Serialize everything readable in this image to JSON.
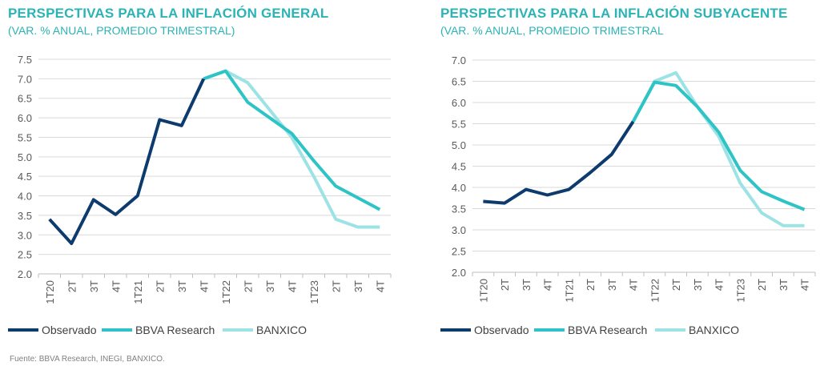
{
  "footer": {
    "source": "Fuente: BBVA Research, INEGI, BANXICO."
  },
  "chart_data": [
    {
      "type": "line",
      "title": "PERSPECTIVAS PARA LA INFLACIÓN GENERAL",
      "subtitle": "(VAR. % ANUAL, PROMEDIO TRIMESTRAL)",
      "categories": [
        "1T20",
        "2T",
        "3T",
        "4T",
        "1T21",
        "2T",
        "3T",
        "4T",
        "1T22",
        "2T",
        "3T",
        "4T",
        "1T23",
        "2T",
        "3T",
        "4T"
      ],
      "ylim": [
        2.0,
        7.5
      ],
      "yticks": [
        "2.0",
        "2.5",
        "3.0",
        "3.5",
        "4.0",
        "4.5",
        "5.0",
        "5.5",
        "6.0",
        "6.5",
        "7.0",
        "7.5"
      ],
      "grid": true,
      "legend_position": "bottom",
      "series": [
        {
          "name": "BANXICO",
          "color": "#9de3e5",
          "values": [
            null,
            null,
            null,
            null,
            null,
            null,
            null,
            7.0,
            7.2,
            6.9,
            6.2,
            5.5,
            4.5,
            3.4,
            3.2,
            3.2
          ]
        },
        {
          "name": "BBVA Research",
          "color": "#2ec4c6",
          "values": [
            null,
            null,
            null,
            null,
            null,
            null,
            null,
            7.0,
            7.2,
            6.4,
            6.0,
            5.6,
            4.9,
            4.25,
            3.95,
            3.65
          ]
        },
        {
          "name": "Observado",
          "color": "#0d3b6e",
          "values": [
            3.4,
            2.78,
            3.9,
            3.52,
            4.0,
            5.95,
            5.8,
            7.0,
            null,
            null,
            null,
            null,
            null,
            null,
            null,
            null
          ]
        }
      ],
      "legend": [
        "Observado",
        "BBVA Research",
        "BANXICO"
      ]
    },
    {
      "type": "line",
      "title": "PERSPECTIVAS PARA LA INFLACIÓN SUBYACENTE",
      "subtitle": "(VAR. % ANUAL, PROMEDIO TRIMESTRAL",
      "categories": [
        "1T20",
        "2T",
        "3T",
        "4T",
        "1T21",
        "2T",
        "3T",
        "4T",
        "1T22",
        "2T",
        "3T",
        "4T",
        "1T23",
        "2T",
        "3T",
        "4T"
      ],
      "ylim": [
        2.0,
        7.0
      ],
      "yticks": [
        "2.0",
        "2.5",
        "3.0",
        "3.5",
        "4.0",
        "4.5",
        "5.0",
        "5.5",
        "6.0",
        "6.5",
        "7.0"
      ],
      "grid": true,
      "legend_position": "bottom",
      "series": [
        {
          "name": "BANXICO",
          "color": "#9de3e5",
          "values": [
            null,
            null,
            null,
            null,
            null,
            null,
            null,
            5.55,
            6.5,
            6.7,
            5.9,
            5.2,
            4.1,
            3.4,
            3.1,
            3.1
          ]
        },
        {
          "name": "BBVA Research",
          "color": "#2ec4c6",
          "values": [
            null,
            null,
            null,
            null,
            null,
            null,
            null,
            5.55,
            6.48,
            6.4,
            5.9,
            5.3,
            4.4,
            3.9,
            3.68,
            3.48
          ]
        },
        {
          "name": "Observado",
          "color": "#0d3b6e",
          "values": [
            3.67,
            3.63,
            3.95,
            3.82,
            3.95,
            4.35,
            4.78,
            5.55,
            null,
            null,
            null,
            null,
            null,
            null,
            null,
            null
          ]
        }
      ],
      "legend": [
        "Observado",
        "BBVA Research",
        "BANXICO"
      ]
    }
  ]
}
